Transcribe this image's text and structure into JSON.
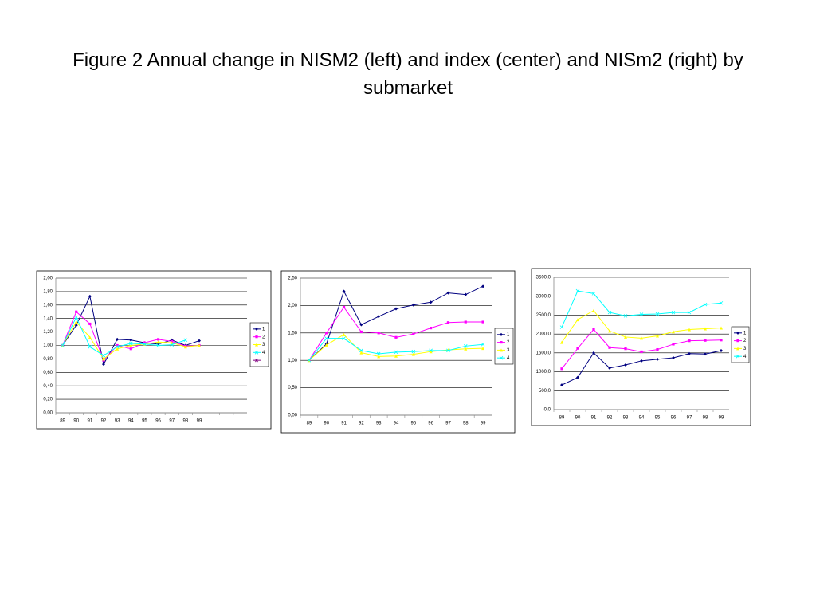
{
  "title": "Figure 2 Annual change in NISM2 (left) and index (center) and NISm2 (right) by submarket",
  "chart_data": [
    {
      "type": "line",
      "categories": [
        "89",
        "90",
        "91",
        "92",
        "93",
        "94",
        "95",
        "96",
        "97",
        "98",
        "99",
        null,
        null,
        null
      ],
      "ylim": [
        0,
        2
      ],
      "yticks": [
        {
          "value": 0,
          "label": "0,00"
        },
        {
          "value": 0.2,
          "label": "0,20"
        },
        {
          "value": 0.4,
          "label": "0,40"
        },
        {
          "value": 0.6,
          "label": "0,60"
        },
        {
          "value": 0.8,
          "label": "0,80"
        },
        {
          "value": 1,
          "label": "1,00"
        },
        {
          "value": 1.2,
          "label": "1,20"
        },
        {
          "value": 1.4,
          "label": "1,40"
        },
        {
          "value": 1.6,
          "label": "1,60"
        },
        {
          "value": 1.8,
          "label": "1,80"
        },
        {
          "value": 2,
          "label": "2,00"
        }
      ],
      "grid": true,
      "legend": "right",
      "series": [
        {
          "name": "1",
          "color": "#000080",
          "marker": "diamond",
          "values": [
            1.0,
            1.3,
            1.73,
            0.72,
            1.09,
            1.08,
            1.04,
            1.02,
            1.08,
            1.0,
            1.07,
            null,
            null,
            null
          ]
        },
        {
          "name": "2",
          "color": "#ff00ff",
          "marker": "square",
          "values": [
            1.0,
            1.5,
            1.32,
            0.78,
            1.0,
            0.95,
            1.04,
            1.09,
            1.06,
            0.99,
            1.0,
            null,
            null,
            null
          ]
        },
        {
          "name": "3",
          "color": "#ffff00",
          "marker": "triangle",
          "values": [
            1.0,
            1.35,
            1.12,
            0.8,
            0.95,
            1.0,
            1.02,
            1.05,
            1.04,
            0.98,
            1.0,
            null,
            null,
            null
          ]
        },
        {
          "name": "4",
          "color": "#00ffff",
          "marker": "cross",
          "values": [
            1.0,
            1.42,
            0.98,
            0.85,
            0.98,
            1.03,
            1.02,
            1.0,
            1.01,
            1.08,
            null,
            null,
            null,
            null
          ]
        },
        {
          "name": null,
          "color": "#800080",
          "marker": "star",
          "values": [
            null,
            null,
            null,
            null,
            null,
            null,
            null,
            null,
            null,
            null,
            null,
            null,
            null,
            null
          ]
        }
      ]
    },
    {
      "type": "line",
      "categories": [
        "89",
        "90",
        "91",
        "92",
        "93",
        "94",
        "95",
        "96",
        "97",
        "98",
        "99"
      ],
      "ylim": [
        0,
        2.5
      ],
      "yticks": [
        {
          "value": 0,
          "label": "0,00"
        },
        {
          "value": 0.5,
          "label": "0,50"
        },
        {
          "value": 1,
          "label": "1,00"
        },
        {
          "value": 1.5,
          "label": "1,50"
        },
        {
          "value": 2,
          "label": "2,00"
        },
        {
          "value": 2.5,
          "label": "2,50"
        }
      ],
      "grid": true,
      "legend": "right",
      "series": [
        {
          "name": "1",
          "color": "#000080",
          "marker": "diamond",
          "values": [
            1.0,
            1.3,
            2.26,
            1.65,
            1.8,
            1.94,
            2.01,
            2.06,
            2.23,
            2.2,
            2.35
          ]
        },
        {
          "name": "2",
          "color": "#ff00ff",
          "marker": "square",
          "values": [
            1.0,
            1.5,
            1.97,
            1.52,
            1.5,
            1.42,
            1.48,
            1.59,
            1.69,
            1.7,
            1.7
          ]
        },
        {
          "name": "3",
          "color": "#ffff00",
          "marker": "triangle",
          "values": [
            1.0,
            1.28,
            1.47,
            1.14,
            1.07,
            1.08,
            1.11,
            1.16,
            1.19,
            1.21,
            1.22
          ]
        },
        {
          "name": "4",
          "color": "#00ffff",
          "marker": "cross",
          "values": [
            1.0,
            1.4,
            1.4,
            1.18,
            1.12,
            1.15,
            1.16,
            1.18,
            1.18,
            1.26,
            1.29
          ]
        }
      ]
    },
    {
      "type": "line",
      "categories": [
        "89",
        "90",
        "91",
        "92",
        "93",
        "94",
        "95",
        "96",
        "97",
        "98",
        "99"
      ],
      "ylim": [
        0,
        3500
      ],
      "yticks": [
        {
          "value": 0,
          "label": "0,0"
        },
        {
          "value": 500,
          "label": "500,0"
        },
        {
          "value": 1000,
          "label": "1000,0"
        },
        {
          "value": 1500,
          "label": "1500,0"
        },
        {
          "value": 2000,
          "label": "2000,0"
        },
        {
          "value": 2500,
          "label": "2500,0"
        },
        {
          "value": 3000,
          "label": "3000,0"
        },
        {
          "value": 3500,
          "label": "3500,0"
        }
      ],
      "grid": true,
      "legend": "right",
      "series": [
        {
          "name": "1",
          "color": "#000080",
          "marker": "diamond",
          "values": [
            650,
            850,
            1500,
            1100,
            1180,
            1290,
            1330,
            1370,
            1480,
            1470,
            1560
          ]
        },
        {
          "name": "2",
          "color": "#ff00ff",
          "marker": "square",
          "values": [
            1080,
            1620,
            2120,
            1640,
            1610,
            1530,
            1590,
            1730,
            1820,
            1830,
            1840
          ]
        },
        {
          "name": "3",
          "color": "#ffff00",
          "marker": "triangle",
          "values": [
            1780,
            2380,
            2620,
            2080,
            1920,
            1890,
            1950,
            2060,
            2120,
            2140,
            2160
          ]
        },
        {
          "name": "4",
          "color": "#00ffff",
          "marker": "cross",
          "values": [
            2180,
            3140,
            3070,
            2570,
            2480,
            2520,
            2530,
            2570,
            2570,
            2780,
            2820
          ]
        }
      ]
    }
  ]
}
